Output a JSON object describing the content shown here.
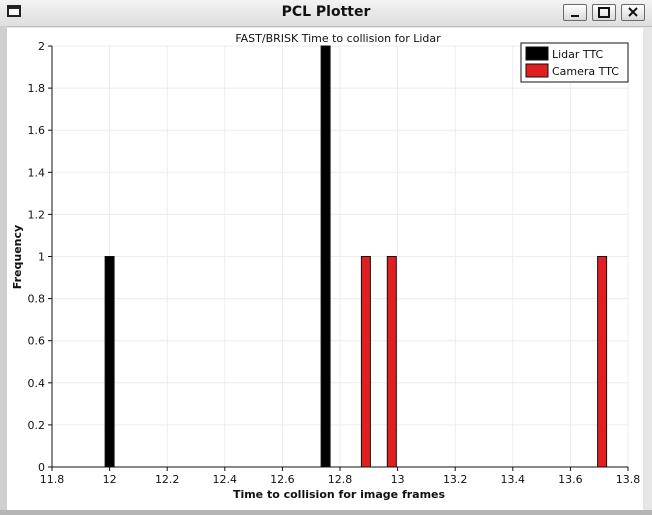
{
  "window": {
    "title": "PCL Plotter"
  },
  "chart_data": {
    "type": "bar",
    "title": "FAST/BRISK Time to collision for Lidar",
    "xlabel": "Time to collision for image frames",
    "ylabel": "Frequency",
    "xlim": [
      11.8,
      13.8
    ],
    "ylim": [
      0,
      2
    ],
    "xticks": [
      "11.8",
      "12",
      "12.2",
      "12.4",
      "12.6",
      "12.8",
      "13",
      "13.2",
      "13.4",
      "13.6",
      "13.8"
    ],
    "yticks": [
      "0",
      "0.2",
      "0.4",
      "0.6",
      "0.8",
      "1",
      "1.2",
      "1.4",
      "1.6",
      "1.8",
      "2"
    ],
    "grid": true,
    "legend_position": "top-right",
    "series": [
      {
        "name": "Lidar TTC",
        "color": "#000000",
        "x": [
          12.0,
          12.75
        ],
        "values": [
          1,
          2
        ]
      },
      {
        "name": "Camera TTC",
        "color": "#e02020",
        "x": [
          12.89,
          12.98,
          13.71
        ],
        "values": [
          1,
          1,
          1
        ]
      }
    ]
  }
}
